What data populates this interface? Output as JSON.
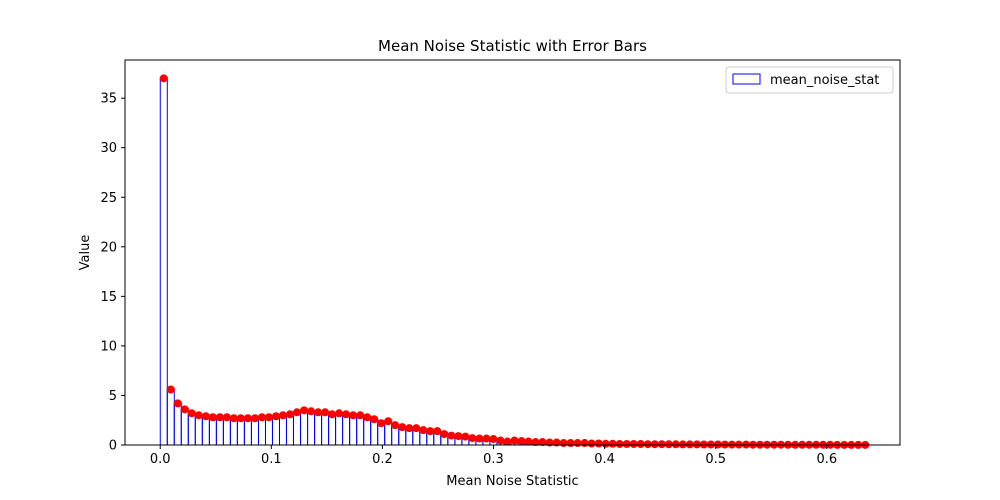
{
  "chart_data": {
    "type": "bar",
    "title": "Mean Noise Statistic with Error Bars",
    "xlabel": "Mean Noise Statistic",
    "ylabel": "Value",
    "xlim": [
      -0.0317,
      0.6659
    ],
    "ylim": [
      0,
      38.85
    ],
    "x_ticks": [
      {
        "value": 0.0,
        "label": "0.0"
      },
      {
        "value": 0.1,
        "label": "0.1"
      },
      {
        "value": 0.2,
        "label": "0.2"
      },
      {
        "value": 0.3,
        "label": "0.3"
      },
      {
        "value": 0.4,
        "label": "0.4"
      },
      {
        "value": 0.5,
        "label": "0.5"
      },
      {
        "value": 0.6,
        "label": "0.6"
      }
    ],
    "y_ticks": [
      {
        "value": 0,
        "label": "0"
      },
      {
        "value": 5,
        "label": "5"
      },
      {
        "value": 10,
        "label": "10"
      },
      {
        "value": 15,
        "label": "15"
      },
      {
        "value": 20,
        "label": "20"
      },
      {
        "value": 25,
        "label": "25"
      },
      {
        "value": 30,
        "label": "30"
      },
      {
        "value": 35,
        "label": "35"
      }
    ],
    "legend": {
      "position": "top-right",
      "entries": [
        "mean_noise_stat"
      ]
    },
    "bar_color": "#0000ff",
    "marker_color": "#ff0000",
    "bin_width": 0.00632,
    "series": [
      {
        "name": "mean_noise_stat",
        "x": [
          0.0032,
          0.0095,
          0.0158,
          0.0221,
          0.0284,
          0.0347,
          0.0411,
          0.0474,
          0.0537,
          0.06,
          0.0663,
          0.0726,
          0.0789,
          0.0853,
          0.0916,
          0.0979,
          0.1042,
          0.1105,
          0.1168,
          0.1231,
          0.1295,
          0.1358,
          0.1421,
          0.1484,
          0.1547,
          0.161,
          0.1673,
          0.1737,
          0.18,
          0.1863,
          0.1926,
          0.1989,
          0.2052,
          0.2115,
          0.2179,
          0.2242,
          0.2305,
          0.2368,
          0.2431,
          0.2494,
          0.2557,
          0.2621,
          0.2684,
          0.2747,
          0.281,
          0.2873,
          0.2936,
          0.2999,
          0.3063,
          0.3126,
          0.3189,
          0.3252,
          0.3315,
          0.3378,
          0.3441,
          0.3505,
          0.3568,
          0.3631,
          0.3694,
          0.3757,
          0.382,
          0.3883,
          0.3947,
          0.401,
          0.4073,
          0.4136,
          0.4199,
          0.4262,
          0.4325,
          0.4389,
          0.4452,
          0.4515,
          0.4578,
          0.4641,
          0.4704,
          0.4767,
          0.4831,
          0.4894,
          0.4957,
          0.502,
          0.5083,
          0.5146,
          0.5209,
          0.5273,
          0.5336,
          0.5399,
          0.5462,
          0.5525,
          0.5588,
          0.5651,
          0.5715,
          0.5778,
          0.5841,
          0.5904,
          0.5967,
          0.603,
          0.6093,
          0.6157,
          0.622,
          0.6283,
          0.6346
        ],
        "values": [
          37.0,
          5.6,
          4.2,
          3.6,
          3.2,
          3.0,
          2.9,
          2.8,
          2.8,
          2.8,
          2.7,
          2.7,
          2.7,
          2.7,
          2.8,
          2.8,
          2.9,
          3.0,
          3.1,
          3.3,
          3.5,
          3.4,
          3.3,
          3.3,
          3.1,
          3.2,
          3.1,
          3.0,
          3.0,
          2.8,
          2.6,
          2.2,
          2.4,
          2.0,
          1.8,
          1.7,
          1.7,
          1.5,
          1.4,
          1.4,
          1.1,
          0.95,
          0.9,
          0.85,
          0.7,
          0.65,
          0.65,
          0.6,
          0.45,
          0.35,
          0.45,
          0.4,
          0.35,
          0.3,
          0.3,
          0.25,
          0.25,
          0.2,
          0.2,
          0.2,
          0.2,
          0.15,
          0.15,
          0.12,
          0.12,
          0.1,
          0.1,
          0.1,
          0.1,
          0.08,
          0.08,
          0.08,
          0.07,
          0.07,
          0.06,
          0.06,
          0.06,
          0.05,
          0.05,
          0.05,
          0.04,
          0.04,
          0.04,
          0.04,
          0.03,
          0.03,
          0.03,
          0.03,
          0.03,
          0.02,
          0.02,
          0.02,
          0.02,
          0.02,
          0.02,
          0.02,
          0.01,
          0.01,
          0.01,
          0.01,
          0.01
        ]
      }
    ]
  }
}
